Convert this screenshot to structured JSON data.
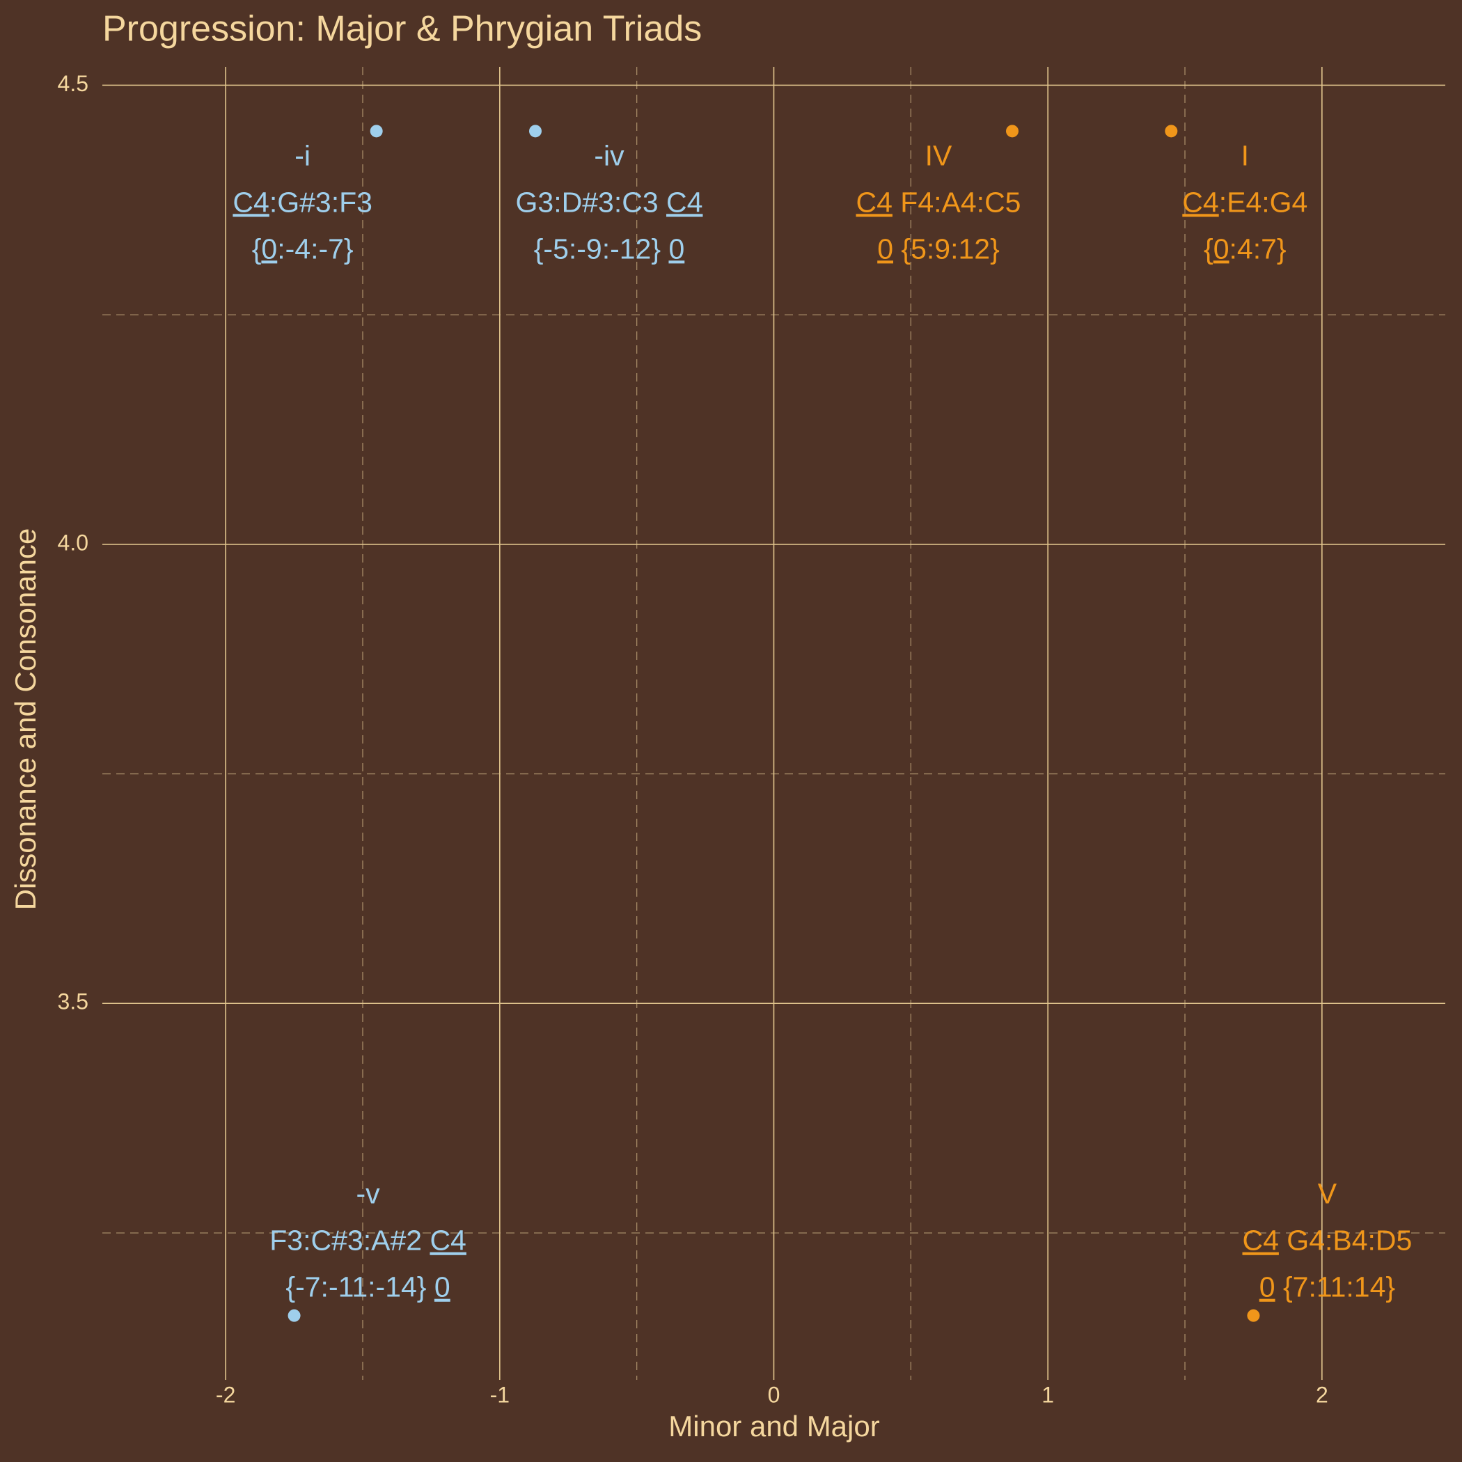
{
  "chart_data": {
    "type": "scatter",
    "title": "Progression: Major & Phrygian Triads",
    "x_label": "Minor and Major",
    "y_label": "Dissonance and Consonance",
    "xlim": [
      -2.45,
      2.45
    ],
    "ylim": [
      3.09,
      4.52
    ],
    "xticks": [
      -2,
      -1,
      0,
      1,
      2
    ],
    "yticks": [
      3.5,
      {
        "value": 4,
        "label": "4.0"
      },
      4.5
    ],
    "x_minor_ticks": [
      -1.5,
      -0.5,
      0.5,
      1.5
    ],
    "y_minor_ticks": [
      3.25,
      3.75,
      4.25
    ],
    "grid": true,
    "series": [
      {
        "color": "#9fcfec",
        "x": [
          -1.45,
          -0.87,
          -1.75
        ],
        "values": [
          4.45,
          4.45,
          3.16
        ],
        "labels": [
          [
            [
              "-i"
            ],
            [
              {
                "text": "C4",
                "underline": true
              },
              ":G#3:F3"
            ],
            [
              "{",
              {
                "text": "0",
                "underline": true
              },
              ":-4:-7}"
            ]
          ],
          [
            [
              "-iv"
            ],
            [
              "G3:D#3:C3 ",
              {
                "text": "C4",
                "underline": true
              }
            ],
            [
              "{-5:-9:-12} ",
              {
                "text": "0",
                "underline": true
              }
            ]
          ],
          [
            [
              "-v"
            ],
            [
              "F3:C#3:A#2 ",
              {
                "text": "C4",
                "underline": true
              }
            ],
            [
              "{-7:-11:-14} ",
              {
                "text": "0",
                "underline": true
              }
            ]
          ]
        ]
      },
      {
        "color": "#f0961a",
        "x": [
          0.87,
          1.45,
          1.75
        ],
        "values": [
          4.45,
          4.45,
          3.16
        ],
        "labels": [
          [
            [
              "IV"
            ],
            [
              {
                "text": "C4",
                "underline": true
              },
              " F4:A4:C5"
            ],
            [
              {
                "text": "0",
                "underline": true
              },
              " {5:9:12}"
            ]
          ],
          [
            [
              "I"
            ],
            [
              {
                "text": "C4",
                "underline": true
              },
              ":E4:G4"
            ],
            [
              "{",
              {
                "text": "0",
                "underline": true
              },
              ":4:7}"
            ]
          ],
          [
            [
              "V"
            ],
            [
              {
                "text": "C4",
                "underline": true
              },
              " G4:B4:D5"
            ],
            [
              {
                "text": "0",
                "underline": true
              },
              " {7:11:14}"
            ]
          ]
        ]
      }
    ]
  }
}
